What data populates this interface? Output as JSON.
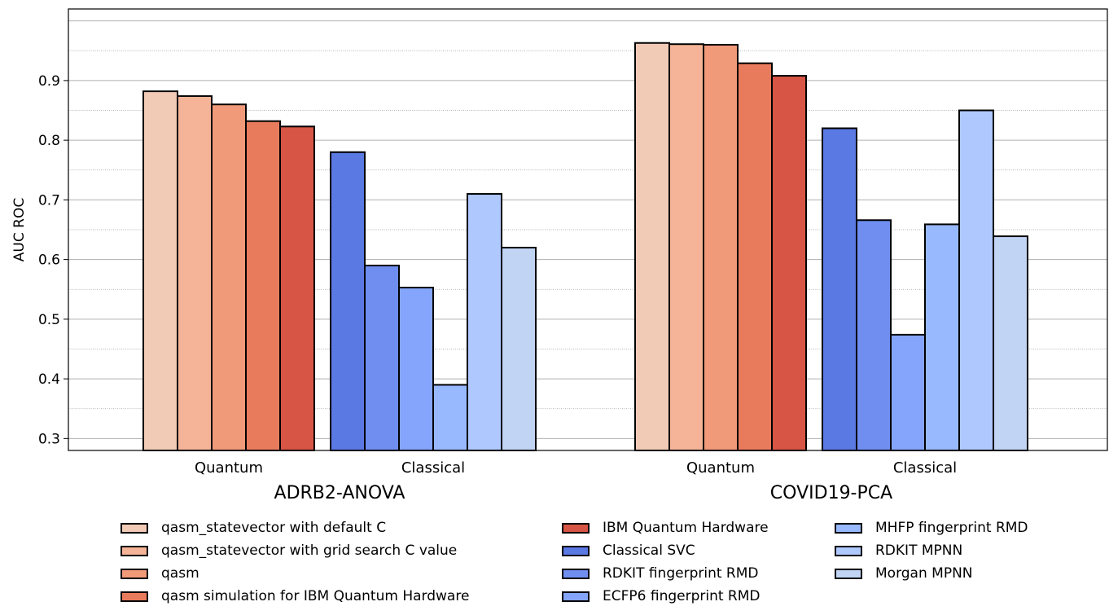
{
  "chart_data": {
    "type": "bar",
    "ylabel": "AUC ROC",
    "ylim": [
      0.28,
      1.02
    ],
    "yticks": [
      "0.3",
      "0.4",
      "0.5",
      "0.6",
      "0.7",
      "0.8",
      "0.9"
    ],
    "grid": "horizontal major and minor lines",
    "legend_placement": "bottom",
    "groups": [
      {
        "name": "ADRB2-ANOVA",
        "subgroups": [
          {
            "label": "Quantum",
            "values": [
              0.882,
              0.874,
              0.86,
              0.832,
              0.823
            ]
          },
          {
            "label": "Classical",
            "values": [
              0.78,
              0.59,
              0.553,
              0.39,
              0.71,
              0.62
            ]
          }
        ]
      },
      {
        "name": "COVID19-PCA",
        "subgroups": [
          {
            "label": "Quantum",
            "values": [
              0.963,
              0.961,
              0.96,
              0.929,
              0.908
            ]
          },
          {
            "label": "Classical",
            "values": [
              0.82,
              0.666,
              0.474,
              0.659,
              0.85,
              0.639
            ]
          }
        ]
      }
    ],
    "series": [
      {
        "name": "qasm_statevector with default C",
        "color": "#f1cbb6"
      },
      {
        "name": "qasm_statevector with grid search C value",
        "color": "#f5b497"
      },
      {
        "name": "qasm",
        "color": "#f19a79"
      },
      {
        "name": "qasm simulation for IBM Quantum Hardware",
        "color": "#e97b5d"
      },
      {
        "name": "IBM Quantum Hardware",
        "color": "#d65545"
      },
      {
        "name": "Classical SVC",
        "color": "#5b79e3"
      },
      {
        "name": "RDKIT fingerprint RMD",
        "color": "#6f8ef0"
      },
      {
        "name": "ECFP6 fingerprint RMD",
        "color": "#84a5fb"
      },
      {
        "name": "MHFP fingerprint RMD",
        "color": "#99b9fe"
      },
      {
        "name": "RDKIT MPNN",
        "color": "#afc9fe"
      },
      {
        "name": "Morgan MPNN",
        "color": "#c1d4f4"
      }
    ]
  }
}
